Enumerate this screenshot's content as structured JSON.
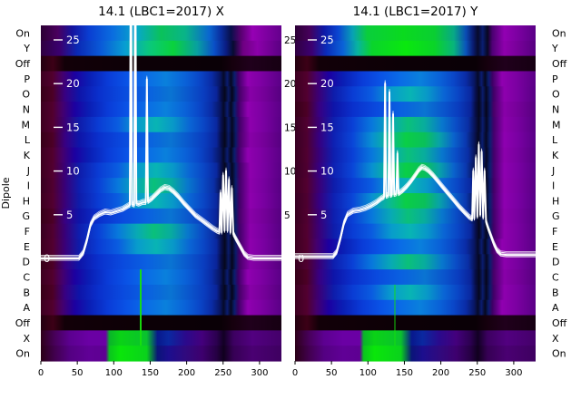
{
  "figure": {
    "bg": "#ffffff",
    "dipole_label": "Dipole",
    "row_labels": [
      "On",
      "Y",
      "Off",
      "P",
      "O",
      "N",
      "M",
      "L",
      "K",
      "J",
      "I",
      "H",
      "G",
      "F",
      "E",
      "D",
      "C",
      "B",
      "A",
      "Off",
      "X",
      "On"
    ]
  },
  "palette": {
    "topA": [
      [
        0,
        "#2c0034"
      ],
      [
        0.07,
        "#4a005e"
      ],
      [
        0.13,
        "#14139e"
      ],
      [
        0.2,
        "#0a3ed2"
      ],
      [
        0.3,
        "#0a6ee0"
      ],
      [
        0.4,
        "#07a8c8"
      ],
      [
        0.5,
        "#0ac25a"
      ],
      [
        0.6,
        "#09b489"
      ],
      [
        0.7,
        "#0a66d0"
      ],
      [
        0.75,
        "#0a2c9e"
      ],
      [
        0.79,
        "#08104a"
      ],
      [
        0.83,
        "#56006e"
      ],
      [
        0.88,
        "#9600b4"
      ],
      [
        1,
        "#64008c"
      ]
    ],
    "topB": [
      [
        0,
        "#300040"
      ],
      [
        0.08,
        "#3a0070"
      ],
      [
        0.15,
        "#0a28b4"
      ],
      [
        0.25,
        "#0a5ad8"
      ],
      [
        0.35,
        "#089ed2"
      ],
      [
        0.45,
        "#0ac87d"
      ],
      [
        0.55,
        "#0ad23c"
      ],
      [
        0.65,
        "#08a0a0"
      ],
      [
        0.72,
        "#0a50c8"
      ],
      [
        0.77,
        "#0a1c82"
      ],
      [
        0.8,
        "#070b30"
      ],
      [
        0.84,
        "#6e0082"
      ],
      [
        0.9,
        "#8c00aa"
      ],
      [
        1,
        "#5a0082"
      ]
    ],
    "topA2": [
      [
        0,
        "#2c0036"
      ],
      [
        0.06,
        "#46005a"
      ],
      [
        0.12,
        "#0e18a6"
      ],
      [
        0.18,
        "#0a46d2"
      ],
      [
        0.24,
        "#08a2b4"
      ],
      [
        0.3,
        "#0ace3c"
      ],
      [
        0.45,
        "#0ada1e"
      ],
      [
        0.58,
        "#0ace32"
      ],
      [
        0.66,
        "#08a886"
      ],
      [
        0.71,
        "#0a4cb4"
      ],
      [
        0.74,
        "#0a1a6e"
      ],
      [
        0.76,
        "#070a2a"
      ],
      [
        0.78,
        "#0a1c6e"
      ],
      [
        0.8,
        "#070820"
      ],
      [
        0.82,
        "#4a0070"
      ],
      [
        0.87,
        "#9200b2"
      ],
      [
        0.93,
        "#7a00a0"
      ],
      [
        1,
        "#5a0086"
      ]
    ],
    "topB2": [
      [
        0,
        "#300040"
      ],
      [
        0.07,
        "#3c0072"
      ],
      [
        0.13,
        "#0a2cba"
      ],
      [
        0.2,
        "#0a62d8"
      ],
      [
        0.26,
        "#08b4a0"
      ],
      [
        0.32,
        "#0ad42c"
      ],
      [
        0.46,
        "#0ae80e"
      ],
      [
        0.58,
        "#0ad428"
      ],
      [
        0.66,
        "#08b47c"
      ],
      [
        0.71,
        "#0a54bc"
      ],
      [
        0.74,
        "#0a1c72"
      ],
      [
        0.76,
        "#070a2c"
      ],
      [
        0.78,
        "#0a1e72"
      ],
      [
        0.8,
        "#070822"
      ],
      [
        0.82,
        "#500076"
      ],
      [
        0.87,
        "#8e00ac"
      ],
      [
        0.93,
        "#760098"
      ],
      [
        1,
        "#560080"
      ]
    ],
    "off": [
      [
        0,
        "#240010"
      ],
      [
        0.05,
        "#3c0016"
      ],
      [
        0.1,
        "#120008"
      ],
      [
        0.45,
        "#0c0006"
      ],
      [
        0.75,
        "#0a0006"
      ],
      [
        0.8,
        "#16000e"
      ],
      [
        0.87,
        "#20001c"
      ],
      [
        1,
        "#160012"
      ]
    ],
    "blueA": [
      [
        0,
        "#3c0020"
      ],
      [
        0.05,
        "#52002e"
      ],
      [
        0.09,
        "#44006e"
      ],
      [
        0.14,
        "#1c00a0"
      ],
      [
        0.2,
        "#0a1eb4"
      ],
      [
        0.28,
        "#0a3cd8"
      ],
      [
        0.36,
        "#0a54e6"
      ],
      [
        0.44,
        "#0a6ce6"
      ],
      [
        0.52,
        "#0a80dc"
      ],
      [
        0.6,
        "#0a62d8"
      ],
      [
        0.66,
        "#0a46c8"
      ],
      [
        0.71,
        "#0a2ca6"
      ],
      [
        0.745,
        "#081664"
      ],
      [
        0.76,
        "#060a28"
      ],
      [
        0.775,
        "#0a1c70"
      ],
      [
        0.79,
        "#06081e"
      ],
      [
        0.805,
        "#0a1e6e"
      ],
      [
        0.82,
        "#3c0064"
      ],
      [
        0.86,
        "#9000b0"
      ],
      [
        0.92,
        "#7c00a2"
      ],
      [
        1,
        "#5a0086"
      ]
    ],
    "blueB": [
      [
        0,
        "#360018"
      ],
      [
        0.05,
        "#4c0026"
      ],
      [
        0.1,
        "#380082"
      ],
      [
        0.16,
        "#0e14a8"
      ],
      [
        0.24,
        "#0a30cc"
      ],
      [
        0.34,
        "#0a4ade"
      ],
      [
        0.44,
        "#0a60e0"
      ],
      [
        0.54,
        "#0a74d2"
      ],
      [
        0.62,
        "#0a54cc"
      ],
      [
        0.68,
        "#0a3cbe"
      ],
      [
        0.73,
        "#0a249a"
      ],
      [
        0.75,
        "#070e46"
      ],
      [
        0.765,
        "#06081c"
      ],
      [
        0.78,
        "#0a1a64"
      ],
      [
        0.795,
        "#06061a"
      ],
      [
        0.81,
        "#0a1a66"
      ],
      [
        0.825,
        "#460068"
      ],
      [
        0.87,
        "#8800a8"
      ],
      [
        0.93,
        "#740098"
      ],
      [
        1,
        "#560080"
      ]
    ],
    "cyanA": [
      [
        0,
        "#3c0020"
      ],
      [
        0.05,
        "#520030"
      ],
      [
        0.1,
        "#3a0078"
      ],
      [
        0.16,
        "#0e1caa"
      ],
      [
        0.24,
        "#0a3cd4"
      ],
      [
        0.32,
        "#0a5ce0"
      ],
      [
        0.4,
        "#089ccc"
      ],
      [
        0.48,
        "#08b4b4"
      ],
      [
        0.55,
        "#0898c8"
      ],
      [
        0.62,
        "#0a64d4"
      ],
      [
        0.68,
        "#0a44c4"
      ],
      [
        0.73,
        "#0a28a0"
      ],
      [
        0.75,
        "#081050"
      ],
      [
        0.765,
        "#06081e"
      ],
      [
        0.78,
        "#0a1c6c"
      ],
      [
        0.795,
        "#060820"
      ],
      [
        0.81,
        "#0a1c6a"
      ],
      [
        0.825,
        "#400066"
      ],
      [
        0.87,
        "#8e00ae"
      ],
      [
        0.93,
        "#7800a0"
      ],
      [
        1,
        "#580084"
      ]
    ],
    "cyanB": [
      [
        0,
        "#380020"
      ],
      [
        0.05,
        "#500030"
      ],
      [
        0.1,
        "#380078"
      ],
      [
        0.16,
        "#0e1eae"
      ],
      [
        0.24,
        "#0a40d6"
      ],
      [
        0.32,
        "#0878dc"
      ],
      [
        0.4,
        "#08aab4"
      ],
      [
        0.47,
        "#0ac07a"
      ],
      [
        0.54,
        "#08ac9e"
      ],
      [
        0.61,
        "#0878cc"
      ],
      [
        0.67,
        "#0a4cc6"
      ],
      [
        0.72,
        "#0a2ea4"
      ],
      [
        0.748,
        "#081254"
      ],
      [
        0.764,
        "#060820"
      ],
      [
        0.78,
        "#0a1c6e"
      ],
      [
        0.796,
        "#060822"
      ],
      [
        0.81,
        "#0a1e6c"
      ],
      [
        0.826,
        "#42006a"
      ],
      [
        0.87,
        "#8c00ac"
      ],
      [
        0.93,
        "#76009e"
      ],
      [
        1,
        "#560082"
      ]
    ],
    "greenA": [
      [
        0,
        "#380022"
      ],
      [
        0.05,
        "#4e0030"
      ],
      [
        0.1,
        "#360080"
      ],
      [
        0.16,
        "#0e20b2"
      ],
      [
        0.24,
        "#0a46d8"
      ],
      [
        0.32,
        "#0890d2"
      ],
      [
        0.39,
        "#0ab896"
      ],
      [
        0.46,
        "#0ace46"
      ],
      [
        0.54,
        "#0ac05a"
      ],
      [
        0.6,
        "#08a2a8"
      ],
      [
        0.66,
        "#0a62cc"
      ],
      [
        0.71,
        "#0a38b0"
      ],
      [
        0.745,
        "#081458"
      ],
      [
        0.762,
        "#060820"
      ],
      [
        0.778,
        "#0a1e70"
      ],
      [
        0.794,
        "#060824"
      ],
      [
        0.81,
        "#0a2070"
      ],
      [
        0.826,
        "#44006c"
      ],
      [
        0.87,
        "#8e00b0"
      ],
      [
        0.93,
        "#7800a2"
      ],
      [
        1,
        "#580086"
      ]
    ],
    "botA": [
      [
        0,
        "#2e001a"
      ],
      [
        0.06,
        "#48005c"
      ],
      [
        0.12,
        "#5c0090"
      ],
      [
        0.2,
        "#6a00a4"
      ],
      [
        0.27,
        "#6a00a4"
      ],
      [
        0.285,
        "#0ab42a"
      ],
      [
        0.33,
        "#0ad216"
      ],
      [
        0.44,
        "#0ac22e"
      ],
      [
        0.485,
        "#08188c"
      ],
      [
        0.53,
        "#0a28a0"
      ],
      [
        0.6,
        "#2a0a8c"
      ],
      [
        0.67,
        "#44007c"
      ],
      [
        0.73,
        "#2c0050"
      ],
      [
        0.76,
        "#120024"
      ],
      [
        0.8,
        "#3c0060"
      ],
      [
        0.88,
        "#520080"
      ],
      [
        1,
        "#44006a"
      ]
    ],
    "botB": [
      [
        0,
        "#2a0016"
      ],
      [
        0.06,
        "#420050"
      ],
      [
        0.12,
        "#540082"
      ],
      [
        0.2,
        "#600096"
      ],
      [
        0.27,
        "#5e0092"
      ],
      [
        0.285,
        "#0ac41e"
      ],
      [
        0.33,
        "#0ae60a"
      ],
      [
        0.44,
        "#0ad21c"
      ],
      [
        0.485,
        "#0a1478"
      ],
      [
        0.53,
        "#1c0e8e"
      ],
      [
        0.6,
        "#300a7e"
      ],
      [
        0.67,
        "#3e006e"
      ],
      [
        0.73,
        "#260044"
      ],
      [
        0.76,
        "#10001e"
      ],
      [
        0.8,
        "#360054"
      ],
      [
        0.88,
        "#4a0072"
      ],
      [
        1,
        "#3e0060"
      ]
    ]
  },
  "chart_data": [
    {
      "id": "x",
      "type": "heatmap+line",
      "title": "14.1 (LBC1=2017) X",
      "x_ticks": [
        0,
        50,
        100,
        150,
        200,
        250,
        300
      ],
      "xlim": [
        0,
        330
      ],
      "y_ticks": [
        5,
        10,
        15,
        20,
        25
      ],
      "zero_label": "0",
      "ylim": [
        -11.9,
        26.7
      ],
      "legend": "none",
      "grid": false,
      "right_tick_labels": true,
      "rows": [
        "topA",
        "topB",
        "off",
        "blueA",
        "blueB",
        "blueA",
        "cyanA",
        "blueB",
        "blueA",
        "cyanA",
        "cyanB",
        "cyanA",
        "blueB",
        "cyanB",
        "cyanA",
        "blueB",
        "blueA",
        "blueB",
        "blueA",
        "off",
        "botA",
        "botB"
      ],
      "green_vline": {
        "x": 137,
        "row_start": 16,
        "row_end": 21,
        "color": "#17e20c",
        "width": 2,
        "opacity": 0.95
      },
      "series": [
        [
          0,
          0
        ],
        [
          52,
          0
        ],
        [
          58,
          0.6
        ],
        [
          63,
          2
        ],
        [
          68,
          3.8
        ],
        [
          73,
          4.6
        ],
        [
          80,
          5
        ],
        [
          88,
          5.3
        ],
        [
          96,
          5.2
        ],
        [
          104,
          5.4
        ],
        [
          112,
          5.6
        ],
        [
          118,
          5.9
        ],
        [
          122,
          6.1
        ],
        [
          123.5,
          40
        ],
        [
          125,
          6.2
        ],
        [
          128,
          6.1
        ],
        [
          129.5,
          38
        ],
        [
          131,
          6.3
        ],
        [
          134,
          6.2
        ],
        [
          137,
          6.3
        ],
        [
          140,
          6.4
        ],
        [
          144,
          6.4
        ],
        [
          145.5,
          20.5
        ],
        [
          147,
          6.5
        ],
        [
          152,
          6.8
        ],
        [
          158,
          7.3
        ],
        [
          164,
          7.8
        ],
        [
          170,
          8.1
        ],
        [
          176,
          8
        ],
        [
          182,
          7.6
        ],
        [
          189,
          7
        ],
        [
          196,
          6.3
        ],
        [
          204,
          5.6
        ],
        [
          212,
          4.9
        ],
        [
          220,
          4.4
        ],
        [
          228,
          3.9
        ],
        [
          236,
          3.4
        ],
        [
          242,
          3.1
        ],
        [
          245,
          3
        ],
        [
          246.5,
          7.5
        ],
        [
          248,
          3
        ],
        [
          250,
          9.5
        ],
        [
          252,
          3.2
        ],
        [
          254,
          10
        ],
        [
          256,
          3.2
        ],
        [
          258,
          9
        ],
        [
          260,
          3
        ],
        [
          262,
          8
        ],
        [
          264,
          2.8
        ],
        [
          267,
          2.3
        ],
        [
          271,
          1.7
        ],
        [
          275,
          1.1
        ],
        [
          279,
          0.5
        ],
        [
          284,
          0.1
        ],
        [
          292,
          0
        ],
        [
          330,
          0
        ]
      ]
    },
    {
      "id": "y",
      "type": "heatmap+line",
      "title": "14.1 (LBC1=2017) Y",
      "x_ticks": [
        0,
        50,
        100,
        150,
        200,
        250,
        300
      ],
      "xlim": [
        0,
        330
      ],
      "y_ticks": [
        5,
        10,
        15,
        20,
        25
      ],
      "zero_label": "0",
      "ylim": [
        -11.9,
        26.7
      ],
      "legend": "none",
      "grid": false,
      "right_tick_labels": false,
      "rows": [
        "topA2",
        "topB2",
        "off",
        "blueA",
        "cyanA",
        "blueB",
        "cyanB",
        "greenA",
        "cyanB",
        "greenA",
        "cyanA",
        "greenA",
        "cyanB",
        "cyanA",
        "blueA",
        "cyanB",
        "blueB",
        "cyanA",
        "blueA",
        "off",
        "botA",
        "botB"
      ],
      "green_vline": {
        "x": 137,
        "row_start": 17,
        "row_end": 21,
        "color": "#17e20c",
        "width": 1.5,
        "opacity": 0.6
      },
      "series": [
        [
          0,
          0.2
        ],
        [
          52,
          0.2
        ],
        [
          57,
          0.7
        ],
        [
          62,
          2.2
        ],
        [
          67,
          4
        ],
        [
          72,
          5
        ],
        [
          80,
          5.4
        ],
        [
          88,
          5.5
        ],
        [
          96,
          5.7
        ],
        [
          104,
          6
        ],
        [
          112,
          6.4
        ],
        [
          118,
          6.8
        ],
        [
          122,
          7
        ],
        [
          123.5,
          20
        ],
        [
          125,
          7.1
        ],
        [
          128,
          7.2
        ],
        [
          129.5,
          19
        ],
        [
          131,
          7.2
        ],
        [
          133,
          7.3
        ],
        [
          134.5,
          16.5
        ],
        [
          136,
          7.3
        ],
        [
          139,
          7.4
        ],
        [
          140.5,
          12
        ],
        [
          142,
          7.4
        ],
        [
          147,
          7.7
        ],
        [
          153,
          8.2
        ],
        [
          159,
          8.8
        ],
        [
          165,
          9.5
        ],
        [
          170,
          10.1
        ],
        [
          174,
          10.4
        ],
        [
          178,
          10.3
        ],
        [
          183,
          10
        ],
        [
          189,
          9.5
        ],
        [
          195,
          8.9
        ],
        [
          202,
          8.2
        ],
        [
          209,
          7.5
        ],
        [
          217,
          6.7
        ],
        [
          225,
          5.9
        ],
        [
          233,
          5.2
        ],
        [
          239,
          4.7
        ],
        [
          243,
          4.5
        ],
        [
          244.5,
          10
        ],
        [
          246,
          4.6
        ],
        [
          248,
          11.5
        ],
        [
          250,
          4.8
        ],
        [
          252,
          13
        ],
        [
          254,
          5
        ],
        [
          256,
          12.2
        ],
        [
          258,
          4.7
        ],
        [
          260,
          10
        ],
        [
          262,
          4.2
        ],
        [
          265,
          3.4
        ],
        [
          269,
          2.5
        ],
        [
          273,
          1.6
        ],
        [
          277,
          0.9
        ],
        [
          282,
          0.5
        ],
        [
          290,
          0.4
        ],
        [
          330,
          0.4
        ]
      ]
    }
  ],
  "style": {
    "trace_color": "#ffffff",
    "text_color": "#000000",
    "inner_tick_color": "#ffffff"
  }
}
